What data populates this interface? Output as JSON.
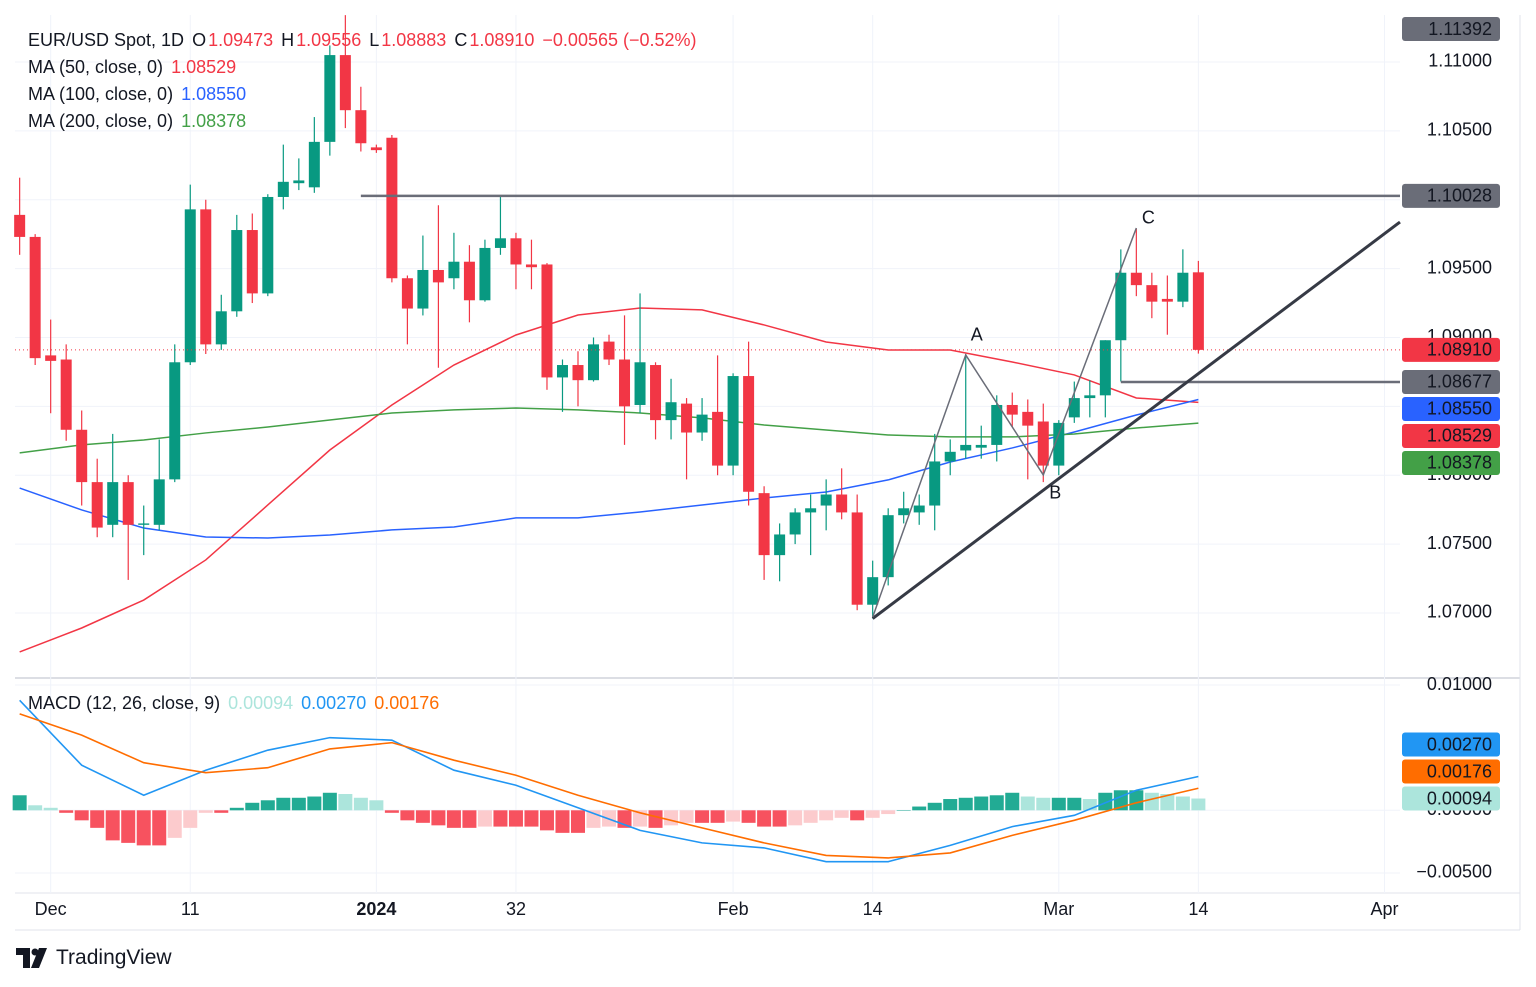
{
  "chart_data": {
    "type": "candlestick",
    "header": {
      "symbol": "EUR/USD Spot, 1D",
      "open_key": "O",
      "open": {
        "value": 1.09473,
        "label": "1.09473"
      },
      "high_key": "H",
      "high": {
        "value": 1.09556,
        "label": "1.09556"
      },
      "low_key": "L",
      "low": {
        "value": 1.08883,
        "label": "1.08883"
      },
      "close_key": "C",
      "close": {
        "value": 1.0891,
        "label": "1.08910"
      },
      "change": {
        "value": -0.00565,
        "label": "−0.00565"
      },
      "change_pct": {
        "value": -0.52,
        "label": "(−0.52%)"
      }
    },
    "up_color": "#089981",
    "down_color": "#f23645",
    "candles": [
      {
        "o": 1.0989,
        "h": 1.1016,
        "l": 1.096,
        "c": 1.0973
      },
      {
        "o": 1.0973,
        "h": 1.0975,
        "l": 1.088,
        "c": 1.0885
      },
      {
        "o": 1.0887,
        "h": 1.0913,
        "l": 1.0845,
        "c": 1.0883
      },
      {
        "o": 1.0884,
        "h": 1.0895,
        "l": 1.0825,
        "c": 1.0833
      },
      {
        "o": 1.0833,
        "h": 1.0847,
        "l": 1.0778,
        "c": 1.0795
      },
      {
        "o": 1.0795,
        "h": 1.0812,
        "l": 1.0755,
        "c": 1.0762
      },
      {
        "o": 1.0764,
        "h": 1.083,
        "l": 1.0755,
        "c": 1.0795
      },
      {
        "o": 1.0795,
        "h": 1.08,
        "l": 1.0724,
        "c": 1.0764
      },
      {
        "o": 1.0764,
        "h": 1.0778,
        "l": 1.0742,
        "c": 1.0765
      },
      {
        "o": 1.0764,
        "h": 1.0826,
        "l": 1.076,
        "c": 1.0797
      },
      {
        "o": 1.0797,
        "h": 1.0895,
        "l": 1.0795,
        "c": 1.0882
      },
      {
        "o": 1.0882,
        "h": 1.1011,
        "l": 1.088,
        "c": 1.0993
      },
      {
        "o": 1.0993,
        "h": 1.1,
        "l": 1.0888,
        "c": 1.0895
      },
      {
        "o": 1.0895,
        "h": 1.0931,
        "l": 1.0891,
        "c": 1.0919
      },
      {
        "o": 1.0919,
        "h": 1.0989,
        "l": 1.0915,
        "c": 1.0978
      },
      {
        "o": 1.0978,
        "h": 1.099,
        "l": 1.0925,
        "c": 1.0932
      },
      {
        "o": 1.0932,
        "h": 1.1004,
        "l": 1.093,
        "c": 1.1002
      },
      {
        "o": 1.1002,
        "h": 1.104,
        "l": 1.0993,
        "c": 1.1013
      },
      {
        "o": 1.1012,
        "h": 1.103,
        "l": 1.1007,
        "c": 1.1014
      },
      {
        "o": 1.1009,
        "h": 1.106,
        "l": 1.1005,
        "c": 1.1042
      },
      {
        "o": 1.1042,
        "h": 1.1112,
        "l": 1.1032,
        "c": 1.1105
      },
      {
        "o": 1.1105,
        "h": 1.1134,
        "l": 1.1052,
        "c": 1.1065
      },
      {
        "o": 1.1065,
        "h": 1.1082,
        "l": 1.1035,
        "c": 1.1041
      },
      {
        "o": 1.1038,
        "h": 1.104,
        "l": 1.1034,
        "c": 1.1036
      },
      {
        "o": 1.1045,
        "h": 1.1047,
        "l": 1.094,
        "c": 1.0943
      },
      {
        "o": 1.0943,
        "h": 1.0945,
        "l": 1.0895,
        "c": 1.0921
      },
      {
        "o": 1.0921,
        "h": 1.0974,
        "l": 1.0916,
        "c": 1.0949
      },
      {
        "o": 1.0949,
        "h": 1.0996,
        "l": 1.0878,
        "c": 1.094
      },
      {
        "o": 1.0943,
        "h": 1.0976,
        "l": 1.0935,
        "c": 1.0955
      },
      {
        "o": 1.0955,
        "h": 1.0967,
        "l": 1.0911,
        "c": 1.0927
      },
      {
        "o": 1.0927,
        "h": 1.0971,
        "l": 1.0926,
        "c": 1.0965
      },
      {
        "o": 1.0965,
        "h": 1.1003,
        "l": 1.096,
        "c": 1.0972
      },
      {
        "o": 1.0972,
        "h": 1.0976,
        "l": 1.0935,
        "c": 1.0953
      },
      {
        "o": 1.0953,
        "h": 1.0971,
        "l": 1.0935,
        "c": 1.0951
      },
      {
        "o": 1.0953,
        "h": 1.0954,
        "l": 1.0862,
        "c": 1.0871
      },
      {
        "o": 1.0871,
        "h": 1.0884,
        "l": 1.0846,
        "c": 1.088
      },
      {
        "o": 1.088,
        "h": 1.089,
        "l": 1.085,
        "c": 1.0869
      },
      {
        "o": 1.0869,
        "h": 1.09,
        "l": 1.0868,
        "c": 1.0895
      },
      {
        "o": 1.0897,
        "h": 1.0902,
        "l": 1.088,
        "c": 1.0884
      },
      {
        "o": 1.0884,
        "h": 1.0916,
        "l": 1.0822,
        "c": 1.085
      },
      {
        "o": 1.0851,
        "h": 1.0932,
        "l": 1.0845,
        "c": 1.0882
      },
      {
        "o": 1.088,
        "h": 1.0882,
        "l": 1.0826,
        "c": 1.084
      },
      {
        "o": 1.084,
        "h": 1.087,
        "l": 1.0826,
        "c": 1.0853
      },
      {
        "o": 1.0852,
        "h": 1.0856,
        "l": 1.0797,
        "c": 1.0831
      },
      {
        "o": 1.0831,
        "h": 1.0856,
        "l": 1.0825,
        "c": 1.0844
      },
      {
        "o": 1.0846,
        "h": 1.0887,
        "l": 1.08,
        "c": 1.0807
      },
      {
        "o": 1.0807,
        "h": 1.0874,
        "l": 1.08,
        "c": 1.0872
      },
      {
        "o": 1.0872,
        "h": 1.0897,
        "l": 1.0778,
        "c": 1.0788
      },
      {
        "o": 1.0787,
        "h": 1.0792,
        "l": 1.0724,
        "c": 1.0742
      },
      {
        "o": 1.0742,
        "h": 1.0765,
        "l": 1.0723,
        "c": 1.0757
      },
      {
        "o": 1.0757,
        "h": 1.0776,
        "l": 1.075,
        "c": 1.0773
      },
      {
        "o": 1.0773,
        "h": 1.0786,
        "l": 1.0742,
        "c": 1.0776
      },
      {
        "o": 1.0778,
        "h": 1.0797,
        "l": 1.076,
        "c": 1.0786
      },
      {
        "o": 1.0786,
        "h": 1.0805,
        "l": 1.0768,
        "c": 1.0773
      },
      {
        "o": 1.0773,
        "h": 1.0786,
        "l": 1.0702,
        "c": 1.0706
      },
      {
        "o": 1.0706,
        "h": 1.0738,
        "l": 1.0696,
        "c": 1.0726
      },
      {
        "o": 1.0726,
        "h": 1.0776,
        "l": 1.072,
        "c": 1.0771
      },
      {
        "o": 1.0771,
        "h": 1.0788,
        "l": 1.0765,
        "c": 1.0776
      },
      {
        "o": 1.0773,
        "h": 1.0786,
        "l": 1.0764,
        "c": 1.0778
      },
      {
        "o": 1.0778,
        "h": 1.083,
        "l": 1.076,
        "c": 1.081
      },
      {
        "o": 1.081,
        "h": 1.0826,
        "l": 1.08,
        "c": 1.0817
      },
      {
        "o": 1.0818,
        "h": 1.0888,
        "l": 1.0812,
        "c": 1.0822
      },
      {
        "o": 1.082,
        "h": 1.0836,
        "l": 1.0812,
        "c": 1.0822
      },
      {
        "o": 1.0822,
        "h": 1.0858,
        "l": 1.081,
        "c": 1.0851
      },
      {
        "o": 1.0851,
        "h": 1.086,
        "l": 1.0835,
        "c": 1.0844
      },
      {
        "o": 1.0846,
        "h": 1.0855,
        "l": 1.0797,
        "c": 1.0836
      },
      {
        "o": 1.0839,
        "h": 1.0852,
        "l": 1.0795,
        "c": 1.0807
      },
      {
        "o": 1.0807,
        "h": 1.084,
        "l": 1.08,
        "c": 1.0838
      },
      {
        "o": 1.0842,
        "h": 1.0868,
        "l": 1.0838,
        "c": 1.0856
      },
      {
        "o": 1.0856,
        "h": 1.0869,
        "l": 1.0842,
        "c": 1.0858
      },
      {
        "o": 1.0858,
        "h": 1.0898,
        "l": 1.0842,
        "c": 1.0898
      },
      {
        "o": 1.0898,
        "h": 1.0964,
        "l": 1.0868,
        "c": 1.0947
      },
      {
        "o": 1.0947,
        "h": 1.0979,
        "l": 1.093,
        "c": 1.0938
      },
      {
        "o": 1.0938,
        "h": 1.0947,
        "l": 1.0914,
        "c": 1.0926
      },
      {
        "o": 1.0928,
        "h": 1.0945,
        "l": 1.0902,
        "c": 1.0926
      },
      {
        "o": 1.0926,
        "h": 1.0964,
        "l": 1.0922,
        "c": 1.0947
      },
      {
        "o": 1.09473,
        "h": 1.09556,
        "l": 1.08883,
        "c": 1.0891
      }
    ],
    "ma_x": [
      0,
      4,
      8,
      12,
      16,
      20,
      24,
      28,
      32,
      36,
      40,
      44,
      48,
      52,
      56,
      60,
      64,
      68,
      72,
      76
    ],
    "series": [
      {
        "name": "MA (50, close, 0)",
        "color": "#f23645",
        "last": {
          "value": 1.08529,
          "label": "1.08529"
        },
        "values": [
          1.06717,
          1.06891,
          1.07094,
          1.07385,
          1.07784,
          1.08183,
          1.0851,
          1.088,
          1.09018,
          1.09163,
          1.09214,
          1.092,
          1.09091,
          1.08967,
          1.08909,
          1.08909,
          1.08822,
          1.08728,
          1.08561,
          1.08529
        ]
      },
      {
        "name": "MA (100, close, 0)",
        "color": "#2962ff",
        "last": {
          "value": 1.0855,
          "label": "1.08550"
        },
        "values": [
          1.07907,
          1.07748,
          1.07617,
          1.07552,
          1.07544,
          1.07566,
          1.07603,
          1.07624,
          1.0769,
          1.0769,
          1.07733,
          1.07784,
          1.07835,
          1.07878,
          1.07966,
          1.08096,
          1.08198,
          1.08314,
          1.08437,
          1.0855
        ]
      },
      {
        "name": "MA (200, close, 0)",
        "color": "#43a047",
        "last": {
          "value": 1.08378,
          "label": "1.08378"
        },
        "values": [
          1.08162,
          1.0822,
          1.08256,
          1.08307,
          1.0835,
          1.08401,
          1.08452,
          1.08474,
          1.08488,
          1.08474,
          1.08452,
          1.08416,
          1.08365,
          1.08328,
          1.08292,
          1.08278,
          1.08278,
          1.08299,
          1.08343,
          1.08378
        ]
      }
    ],
    "levels": [
      {
        "value": 1.10028,
        "label": "1.10028",
        "from": 22
      },
      {
        "value": 1.08677,
        "label": "1.08677",
        "from": 71
      }
    ],
    "level_color": "#6a6d78",
    "high_tag": {
      "value": 1.11392,
      "label": "1.11392"
    },
    "trendline": {
      "x": [
        55,
        89
      ],
      "y": [
        1.0696,
        1.09838
      ],
      "color": "#363a45"
    },
    "pattern": {
      "x": [
        55,
        61,
        66,
        72
      ],
      "y": [
        1.0697,
        1.08873,
        1.08002,
        1.09795
      ],
      "labels": [
        "A",
        "B",
        "C"
      ],
      "color": "#6a6d78"
    },
    "xlim": [
      -0.3,
      89
    ],
    "xticks": [
      {
        "value": 2,
        "label": "Dec"
      },
      11,
      {
        "value": 23,
        "label": "2024"
      },
      32,
      {
        "value": 46,
        "label": "Feb"
      },
      {
        "value": 55,
        "label": "14"
      },
      {
        "value": 67,
        "label": "Mar"
      },
      {
        "value": 76,
        "label": "14"
      },
      {
        "value": 88,
        "label": "Apr"
      }
    ],
    "ylim": [
      1.06528,
      1.11341
    ],
    "yticks": [
      {
        "value": 1.07,
        "label": "1.07000"
      },
      {
        "value": 1.075,
        "label": "1.07500"
      },
      {
        "value": 1.08,
        "label": "1.08000"
      },
      {
        "value": 1.085,
        "label": "1.08500"
      },
      {
        "value": 1.09,
        "label": "1.09000"
      },
      {
        "value": 1.095,
        "label": "1.09500"
      },
      {
        "value": 1.1,
        "label": "1.10000"
      },
      {
        "value": 1.105,
        "label": "1.10500"
      },
      {
        "value": 1.11,
        "label": "1.11000"
      }
    ],
    "grid": true,
    "macd": {
      "name": "MACD (12, 26, close, 9)",
      "ylim": [
        -0.0066,
        0.01056
      ],
      "yticks": [
        {
          "value": 0.01,
          "label": "0.01000"
        },
        {
          "value": 0,
          "label": "0.00000"
        },
        {
          "value": -0.005,
          "label": "−0.00500"
        }
      ],
      "histogram": {
        "last": {
          "value": 0.00094,
          "label": "0.00094"
        },
        "colors": {
          "up_strong": "#22ab94",
          "up_weak": "#ace5dc",
          "down_strong": "#f7525f",
          "down_weak": "#fccbcd"
        },
        "values": [
          0.0012,
          0.0004,
          0.0002,
          -0.0002,
          -0.0008,
          -0.0014,
          -0.0024,
          -0.0026,
          -0.0028,
          -0.0028,
          -0.0022,
          -0.0014,
          -0.0002,
          -0.0002,
          0.0002,
          0.0006,
          0.0008,
          0.001,
          0.001,
          0.0011,
          0.0014,
          0.0013,
          0.001,
          0.0008,
          -0.0002,
          -0.0008,
          -0.001,
          -0.0012,
          -0.0014,
          -0.0014,
          -0.0013,
          -0.0013,
          -0.0013,
          -0.0013,
          -0.0016,
          -0.0018,
          -0.0018,
          -0.0014,
          -0.0013,
          -0.0014,
          -0.0013,
          -0.0014,
          -0.0012,
          -0.001,
          -0.001,
          -0.001,
          -0.0009,
          -0.001,
          -0.0013,
          -0.0013,
          -0.0012,
          -0.001,
          -0.0008,
          -0.0006,
          -0.0008,
          -0.0006,
          -0.0003,
          0,
          0.0003,
          0.0006,
          0.0009,
          0.001,
          0.0011,
          0.0012,
          0.0014,
          0.0011,
          0.001,
          0.001,
          0.001,
          0.0009,
          0.0014,
          0.0016,
          0.0016,
          0.0014,
          0.0013,
          0.0011,
          0.00094
        ]
      },
      "lines": [
        {
          "color": "#2196f3",
          "last": {
            "value": 0.0027,
            "label": "0.00270"
          },
          "values": [
            0.00878,
            0.0036,
            0.0012,
            0.0032,
            0.0048,
            0.0058,
            0.0056,
            0.0032,
            0.002,
            0.0002,
            -0.0016,
            -0.0026,
            -0.003,
            -0.0041,
            -0.0041,
            -0.0028,
            -0.0013,
            -0.0004,
            0.0016,
            0.0027
          ]
        },
        {
          "color": "#ff6d00",
          "last": {
            "value": 0.00176,
            "label": "0.00176"
          },
          "values": [
            0.0077,
            0.006,
            0.0038,
            0.003,
            0.0034,
            0.0049,
            0.0054,
            0.004,
            0.0028,
            0.0012,
            -0.0002,
            -0.0014,
            -0.0026,
            -0.0036,
            -0.0038,
            -0.0034,
            -0.002,
            -0.0008,
            0.0006,
            0.00176
          ]
        }
      ]
    },
    "brand": "TradingView"
  }
}
